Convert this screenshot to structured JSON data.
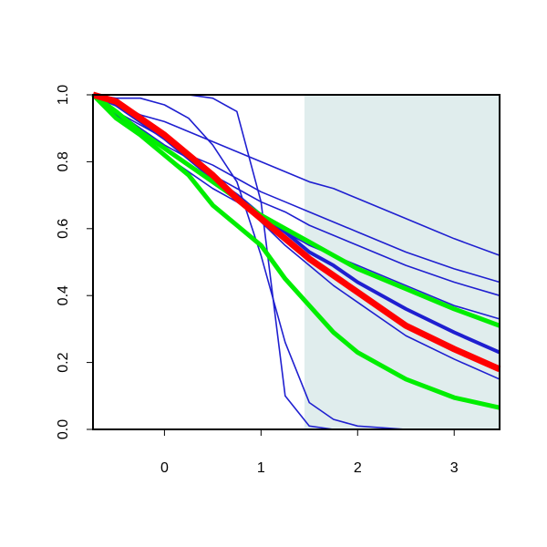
{
  "chart_data": {
    "type": "line",
    "x": [
      -0.74,
      -0.5,
      -0.25,
      0,
      0.25,
      0.5,
      0.75,
      1,
      1.25,
      1.5,
      1.75,
      2,
      2.5,
      3,
      3.47
    ],
    "xlim": [
      -0.74,
      3.47
    ],
    "ylim": [
      0,
      1
    ],
    "xticks": [
      0,
      1,
      2,
      3
    ],
    "yticks": [
      {
        "value": 0,
        "label": "0.0"
      },
      {
        "value": 0.2,
        "label": "0.2"
      },
      {
        "value": 0.4,
        "label": "0.4"
      },
      {
        "value": 0.6,
        "label": "0.6"
      },
      {
        "value": 0.8,
        "label": "0.8"
      },
      {
        "value": 1,
        "label": "1.0"
      }
    ],
    "highlight_xmin": 1.45,
    "highlight_color": "#e0eded",
    "series": [
      {
        "color": "#1f1fd0",
        "width": 1.6,
        "values": [
          1,
          0.97,
          0.94,
          0.92,
          0.89,
          0.86,
          0.83,
          0.8,
          0.77,
          0.74,
          0.72,
          0.69,
          0.63,
          0.57,
          0.52
        ]
      },
      {
        "color": "#1f1fd0",
        "width": 1.6,
        "values": [
          1,
          0.95,
          0.91,
          0.87,
          0.82,
          0.79,
          0.75,
          0.71,
          0.68,
          0.65,
          0.62,
          0.59,
          0.53,
          0.48,
          0.44
        ]
      },
      {
        "color": "#1f1fd0",
        "width": 1.6,
        "values": [
          1,
          0.95,
          0.9,
          0.85,
          0.81,
          0.76,
          0.72,
          0.68,
          0.65,
          0.61,
          0.58,
          0.55,
          0.49,
          0.44,
          0.4
        ]
      },
      {
        "color": "#1f1fd0",
        "width": 1.6,
        "values": [
          1,
          0.94,
          0.88,
          0.82,
          0.77,
          0.72,
          0.68,
          0.63,
          0.59,
          0.55,
          0.52,
          0.49,
          0.43,
          0.37,
          0.33
        ]
      },
      {
        "color": "#1f1fd0",
        "width": 1.6,
        "values": [
          1,
          0.98,
          0.94,
          0.88,
          0.82,
          0.75,
          0.69,
          0.62,
          0.55,
          0.49,
          0.43,
          0.38,
          0.28,
          0.21,
          0.15
        ]
      },
      {
        "color": "#1f1fd0",
        "width": 1.6,
        "values": [
          1,
          1,
          1,
          1,
          1,
          0.99,
          0.95,
          0.68,
          0.1,
          0.01,
          0,
          0,
          0,
          0,
          0
        ]
      },
      {
        "color": "#1f1fd0",
        "width": 1.6,
        "values": [
          1,
          0.99,
          0.99,
          0.97,
          0.93,
          0.85,
          0.74,
          0.52,
          0.26,
          0.08,
          0.03,
          0.01,
          0,
          0,
          0
        ]
      },
      {
        "color": "#1f1fd0",
        "width": 4,
        "values": [
          1,
          0.97,
          0.92,
          0.87,
          0.81,
          0.75,
          0.7,
          0.64,
          0.59,
          0.53,
          0.49,
          0.44,
          0.36,
          0.29,
          0.23
        ]
      },
      {
        "color": "#00ee00",
        "width": 5,
        "values": [
          1,
          0.95,
          0.89,
          0.84,
          0.79,
          0.74,
          0.69,
          0.64,
          0.6,
          0.56,
          0.52,
          0.48,
          0.42,
          0.36,
          0.31
        ]
      },
      {
        "color": "#00ee00",
        "width": 5,
        "values": [
          1,
          0.93,
          0.88,
          0.82,
          0.76,
          0.67,
          0.61,
          0.55,
          0.45,
          0.37,
          0.29,
          0.23,
          0.15,
          0.095,
          0.065
        ]
      },
      {
        "color": "#ff0000",
        "width": 7,
        "values": [
          1,
          0.98,
          0.93,
          0.88,
          0.82,
          0.76,
          0.69,
          0.63,
          0.57,
          0.51,
          0.46,
          0.41,
          0.31,
          0.24,
          0.18
        ]
      }
    ]
  }
}
